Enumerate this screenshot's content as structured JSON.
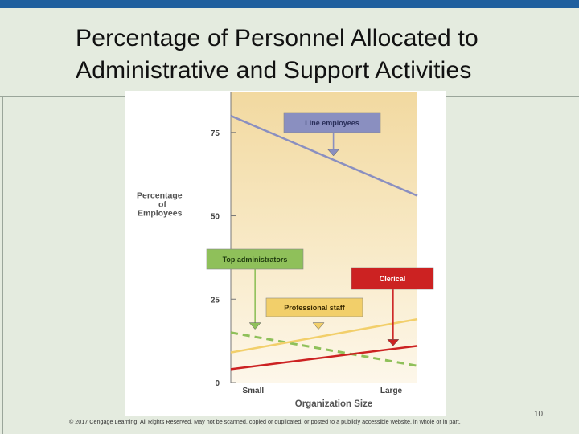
{
  "slide": {
    "title_line1": "Percentage of Personnel Allocated to",
    "title_line2": "Administrative and Support Activities",
    "footer": "© 2017 Cengage Learning. All Rights Reserved. May not be scanned, copied or duplicated, or posted to a publicly accessible website, in whole or in part.",
    "page_number": "10"
  },
  "chart_data": {
    "type": "line",
    "xlabel": "Organization Size",
    "ylabel": "Percentage of Employees",
    "ylabel_lines": [
      "Percentage",
      "of",
      "Employees"
    ],
    "x": [
      "Small",
      "Large"
    ],
    "ylim": [
      0,
      87
    ],
    "yticks": [
      0,
      25,
      50,
      75
    ],
    "grid": false,
    "series": [
      {
        "name": "Line employees",
        "values": [
          80,
          56
        ],
        "color": "#8a8fc0",
        "style": "solid"
      },
      {
        "name": "Top administrators",
        "values": [
          15,
          5
        ],
        "color": "#8fc05a",
        "style": "dashed"
      },
      {
        "name": "Professional staff",
        "values": [
          9,
          19
        ],
        "color": "#f2cf6a",
        "style": "solid"
      },
      {
        "name": "Clerical",
        "values": [
          4,
          11
        ],
        "color": "#cc2222",
        "style": "solid"
      }
    ],
    "labels": [
      {
        "text": "Line employees",
        "fill": "#8a8fc0",
        "text_color": "#2a2f5a",
        "arrow_color": "#8a8fc0",
        "arrow_x": 0.55,
        "arrow_y": 68
      },
      {
        "text": "Top administrators",
        "fill": "#8fc05a",
        "text_color": "#1e3a0e",
        "arrow_color": "#8fc05a",
        "arrow_x": 0.13,
        "arrow_y": 16
      },
      {
        "text": "Professional staff",
        "fill": "#f2cf6a",
        "text_color": "#3a2a00",
        "arrow_color": "#f2cf6a",
        "arrow_x": 0.47,
        "arrow_y": 16
      },
      {
        "text": "Clerical",
        "fill": "#cc2222",
        "text_color": "#ffffff",
        "arrow_color": "#cc2222",
        "arrow_x": 0.87,
        "arrow_y": 11
      }
    ]
  }
}
